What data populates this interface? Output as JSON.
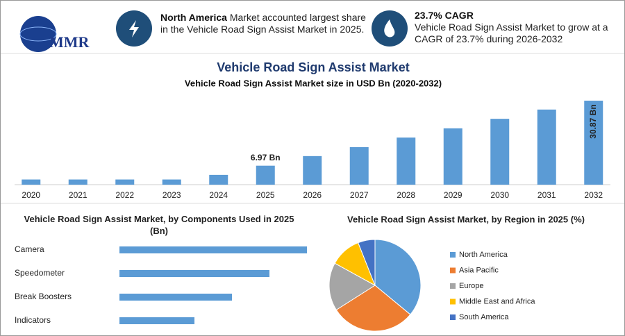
{
  "header": {
    "logo": "MMR",
    "highlights": [
      {
        "title": "North America",
        "text": "Market accounted largest share in the Vehicle Road Sign Assist Market in 2025."
      },
      {
        "title": "23.7% CAGR",
        "text": "Vehicle Road Sign Assist Market to grow at a CAGR of 23.7% during 2026-2032"
      }
    ]
  },
  "chart_data": [
    {
      "type": "bar",
      "title": "Vehicle Road Sign Assist Market",
      "subtitle": "Vehicle Road Sign Assist Market size in USD Bn (2020-2032)",
      "categories": [
        "2020",
        "2021",
        "2022",
        "2023",
        "2024",
        "2025",
        "2026",
        "2027",
        "2028",
        "2029",
        "2030",
        "2031",
        "2032"
      ],
      "values": [
        1.9,
        1.9,
        1.9,
        1.9,
        3.6,
        6.97,
        10.5,
        13.8,
        17.3,
        20.7,
        24.2,
        27.6,
        30.87
      ],
      "value_labels": [
        null,
        null,
        null,
        null,
        null,
        "6.97 Bn",
        null,
        null,
        null,
        null,
        null,
        null,
        "30.87 Bn"
      ],
      "color": "#5b9bd5"
    },
    {
      "type": "hbar",
      "title": "Vehicle Road Sign Assist Market, by Components Used in 2025 (Bn)",
      "categories": [
        "Camera",
        "Speedometer",
        "Break Boosters",
        "Indicators"
      ],
      "values": [
        2.5,
        2.0,
        1.5,
        1.0
      ],
      "color": "#5b9bd5"
    },
    {
      "type": "pie",
      "title": "Vehicle Road Sign Assist Market, by Region in 2025 (%)",
      "categories": [
        "North America",
        "Asia Pacific",
        "Europe",
        "Middle East and Africa",
        "South America"
      ],
      "values": [
        36,
        30,
        17,
        11,
        6
      ],
      "colors": [
        "#5b9bd5",
        "#ed7d31",
        "#a5a5a5",
        "#ffc000",
        "#4472c4"
      ]
    }
  ]
}
